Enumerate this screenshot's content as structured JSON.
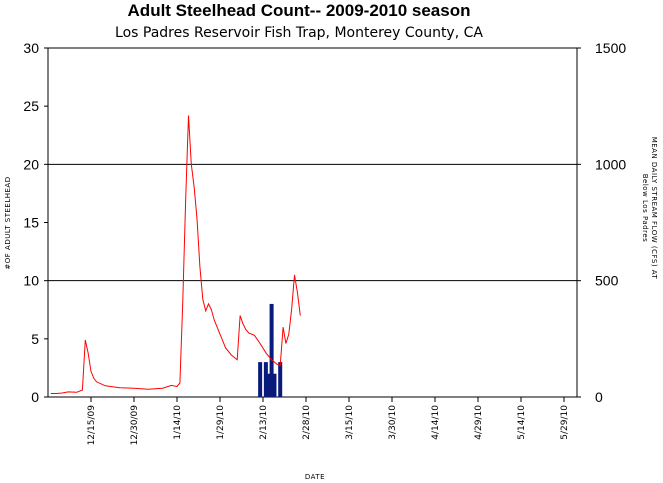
{
  "chart_data": {
    "type": "bar",
    "title": "Adult Steelhead Count-- 2009-2010 season",
    "subtitle": "Los Padres Reservoir Fish Trap, Monterey County, CA",
    "xlabel": "DATE",
    "ylabel": "#OF ADULT STEELHEAD",
    "y2label_line1": "MEAN DAILY STREAM FLOW (CFS) AT",
    "y2label_line2": "Below Los Padres",
    "ylim": [
      0,
      30
    ],
    "y2lim": [
      0,
      1500
    ],
    "yticks": [
      "0",
      "5",
      "10",
      "15",
      "20",
      "25",
      "30"
    ],
    "y2ticks": [
      "0",
      "500",
      "1000",
      "1500"
    ],
    "xticks": [
      "12/15/09",
      "12/30/09",
      "1/14/10",
      "1/29/10",
      "2/13/10",
      "2/28/10",
      "3/15/10",
      "3/30/10",
      "4/14/10",
      "4/29/10",
      "5/14/10",
      "5/29/10"
    ],
    "grid_y_values": [
      10,
      20
    ],
    "colors": {
      "bars": "#0a1a7a",
      "flow": "#ff0000"
    },
    "series": [
      {
        "name": "Adult steelhead count",
        "type": "bar",
        "axis": "left",
        "points": [
          {
            "date": "2/12/10",
            "value": 3
          },
          {
            "date": "2/14/10",
            "value": 3
          },
          {
            "date": "2/15/10",
            "value": 2
          },
          {
            "date": "2/16/10",
            "value": 8
          },
          {
            "date": "2/17/10",
            "value": 2
          },
          {
            "date": "2/19/10",
            "value": 3
          }
        ]
      },
      {
        "name": "Mean daily stream flow",
        "type": "line",
        "axis": "right",
        "points": [
          {
            "date": "12/1/09",
            "value": 15
          },
          {
            "date": "12/3/09",
            "value": 15
          },
          {
            "date": "12/5/09",
            "value": 17
          },
          {
            "date": "12/7/09",
            "value": 22
          },
          {
            "date": "12/10/09",
            "value": 20
          },
          {
            "date": "12/12/09",
            "value": 30
          },
          {
            "date": "12/13/09",
            "value": 245
          },
          {
            "date": "12/14/09",
            "value": 190
          },
          {
            "date": "12/15/09",
            "value": 110
          },
          {
            "date": "12/16/09",
            "value": 80
          },
          {
            "date": "12/17/09",
            "value": 65
          },
          {
            "date": "12/20/09",
            "value": 48
          },
          {
            "date": "12/25/09",
            "value": 40
          },
          {
            "date": "12/30/09",
            "value": 38
          },
          {
            "date": "1/4/10",
            "value": 33
          },
          {
            "date": "1/9/10",
            "value": 38
          },
          {
            "date": "1/12/10",
            "value": 50
          },
          {
            "date": "1/14/10",
            "value": 45
          },
          {
            "date": "1/15/10",
            "value": 60
          },
          {
            "date": "1/16/10",
            "value": 400
          },
          {
            "date": "1/17/10",
            "value": 840
          },
          {
            "date": "1/18/10",
            "value": 1210
          },
          {
            "date": "1/19/10",
            "value": 1000
          },
          {
            "date": "1/20/10",
            "value": 900
          },
          {
            "date": "1/21/10",
            "value": 760
          },
          {
            "date": "1/22/10",
            "value": 560
          },
          {
            "date": "1/23/10",
            "value": 420
          },
          {
            "date": "1/24/10",
            "value": 370
          },
          {
            "date": "1/25/10",
            "value": 400
          },
          {
            "date": "1/26/10",
            "value": 375
          },
          {
            "date": "1/27/10",
            "value": 330
          },
          {
            "date": "1/29/10",
            "value": 270
          },
          {
            "date": "1/31/10",
            "value": 210
          },
          {
            "date": "2/2/10",
            "value": 180
          },
          {
            "date": "2/4/10",
            "value": 160
          },
          {
            "date": "2/5/10",
            "value": 350
          },
          {
            "date": "2/6/10",
            "value": 315
          },
          {
            "date": "2/7/10",
            "value": 290
          },
          {
            "date": "2/8/10",
            "value": 275
          },
          {
            "date": "2/10/10",
            "value": 265
          },
          {
            "date": "2/12/10",
            "value": 230
          },
          {
            "date": "2/14/10",
            "value": 190
          },
          {
            "date": "2/16/10",
            "value": 160
          },
          {
            "date": "2/18/10",
            "value": 140
          },
          {
            "date": "2/19/10",
            "value": 135
          },
          {
            "date": "2/20/10",
            "value": 300
          },
          {
            "date": "2/21/10",
            "value": 230
          },
          {
            "date": "2/22/10",
            "value": 270
          },
          {
            "date": "2/23/10",
            "value": 380
          },
          {
            "date": "2/24/10",
            "value": 525
          },
          {
            "date": "2/25/10",
            "value": 450
          },
          {
            "date": "2/26/10",
            "value": 350
          }
        ]
      }
    ]
  }
}
